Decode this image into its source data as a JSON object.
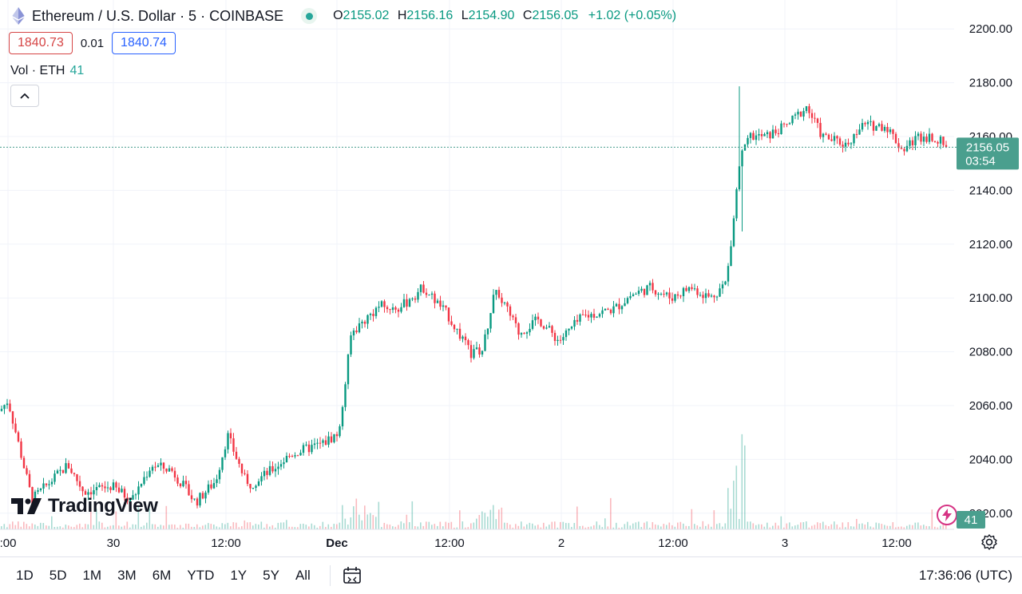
{
  "header": {
    "symbol": "Ethereum / U.S. Dollar · 5 · COINBASE",
    "ohlc": {
      "o_label": "O",
      "o": "2155.02",
      "h_label": "H",
      "h": "2156.16",
      "l_label": "L",
      "l": "2154.90",
      "c_label": "C",
      "c": "2156.05",
      "change": "+1.02 (+0.05%)"
    }
  },
  "trade": {
    "sell": "1840.73",
    "spread": "0.01",
    "buy": "1840.74"
  },
  "volume": {
    "label": "Vol · ETH",
    "value": "41"
  },
  "logo": {
    "text": "TradingView"
  },
  "toolbar": {
    "timeframes": [
      "1D",
      "5D",
      "1M",
      "3M",
      "6M",
      "YTD",
      "1Y",
      "5Y",
      "All"
    ],
    "clock": "17:36:06 (UTC)"
  },
  "colors": {
    "up": "#089981",
    "down": "#f23645",
    "grid": "#f0f3fa",
    "price_tag": "#4a9f8e"
  },
  "icons": {
    "symbol": "ethereum-icon",
    "status": "market-open-dot",
    "collapse": "chevron-up-icon",
    "calendar": "calendar-range-icon",
    "settings": "gear-icon",
    "alert": "lightning-icon"
  },
  "chart_data": {
    "type": "candlestick",
    "y_ticks": [
      "2200.00",
      "2180.00",
      "2160.00",
      "2140.00",
      "2120.00",
      "2100.00",
      "2080.00",
      "2060.00",
      "2040.00",
      "2020.00"
    ],
    "ylim": [
      2014,
      2206
    ],
    "x_ticks": [
      ":00",
      "30",
      "12:00",
      "Dec",
      "12:00",
      "2",
      "12:00",
      "3",
      "12:00"
    ],
    "last_price": "2156.05",
    "countdown": "03:54",
    "key_points": [
      {
        "x": 0,
        "price": 2058
      },
      {
        "x": 10,
        "price": 2062
      },
      {
        "x": 40,
        "price": 2025
      },
      {
        "x": 85,
        "price": 2038
      },
      {
        "x": 105,
        "price": 2028
      },
      {
        "x": 140,
        "price": 2030
      },
      {
        "x": 165,
        "price": 2025
      },
      {
        "x": 190,
        "price": 2038
      },
      {
        "x": 215,
        "price": 2036
      },
      {
        "x": 245,
        "price": 2024
      },
      {
        "x": 270,
        "price": 2032
      },
      {
        "x": 285,
        "price": 2049
      },
      {
        "x": 310,
        "price": 2030
      },
      {
        "x": 340,
        "price": 2036
      },
      {
        "x": 365,
        "price": 2042
      },
      {
        "x": 405,
        "price": 2046
      },
      {
        "x": 425,
        "price": 2050
      },
      {
        "x": 440,
        "price": 2087
      },
      {
        "x": 475,
        "price": 2097
      },
      {
        "x": 500,
        "price": 2096
      },
      {
        "x": 530,
        "price": 2104
      },
      {
        "x": 560,
        "price": 2094
      },
      {
        "x": 590,
        "price": 2079
      },
      {
        "x": 605,
        "price": 2081
      },
      {
        "x": 620,
        "price": 2104
      },
      {
        "x": 650,
        "price": 2087
      },
      {
        "x": 675,
        "price": 2092
      },
      {
        "x": 700,
        "price": 2084
      },
      {
        "x": 730,
        "price": 2093
      },
      {
        "x": 770,
        "price": 2096
      },
      {
        "x": 790,
        "price": 2101
      },
      {
        "x": 815,
        "price": 2104
      },
      {
        "x": 840,
        "price": 2100
      },
      {
        "x": 865,
        "price": 2104
      },
      {
        "x": 890,
        "price": 2100
      },
      {
        "x": 910,
        "price": 2106
      },
      {
        "x": 918,
        "price": 2128
      },
      {
        "x": 926,
        "price": 2150
      },
      {
        "x": 935,
        "price": 2160
      },
      {
        "x": 960,
        "price": 2160
      },
      {
        "x": 985,
        "price": 2164
      },
      {
        "x": 1010,
        "price": 2171
      },
      {
        "x": 1030,
        "price": 2160
      },
      {
        "x": 1060,
        "price": 2157
      },
      {
        "x": 1080,
        "price": 2164
      },
      {
        "x": 1110,
        "price": 2164
      },
      {
        "x": 1130,
        "price": 2155
      },
      {
        "x": 1150,
        "price": 2160
      },
      {
        "x": 1170,
        "price": 2160
      },
      {
        "x": 1186,
        "price": 2156
      }
    ]
  }
}
